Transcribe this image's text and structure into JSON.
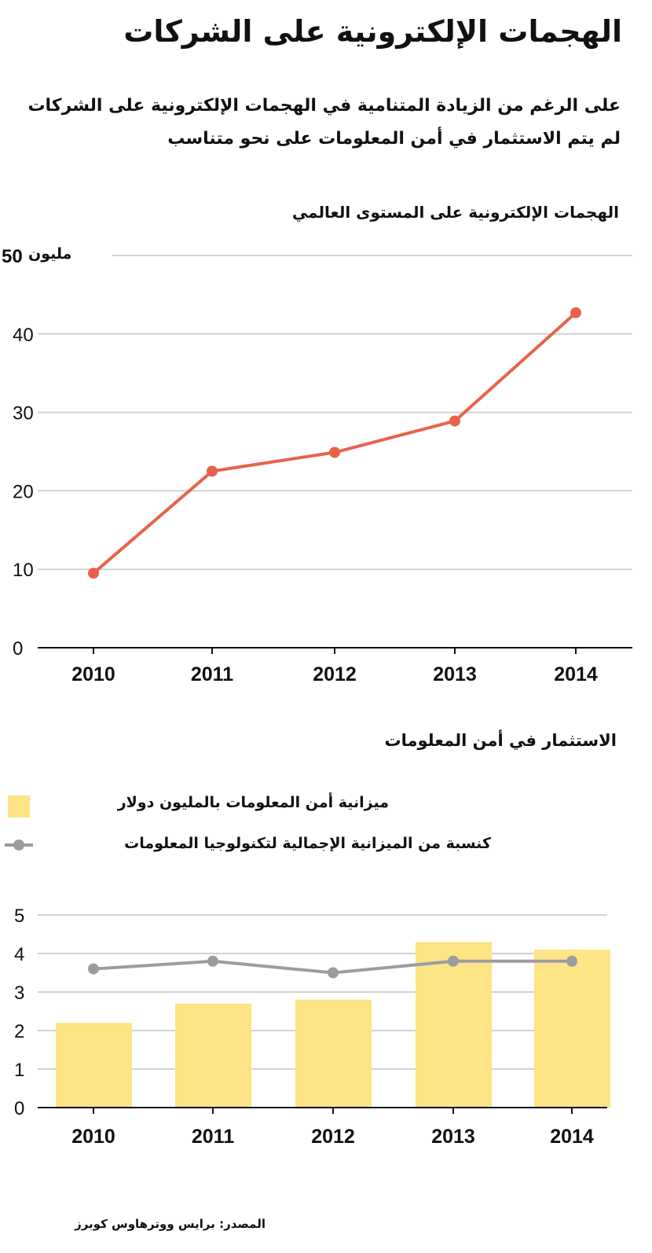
{
  "title": "الهجمات الإلكترونية على الشركات",
  "subtitle": [
    "على الرغم من الزيادة المتنامية في الهجمات الإلكترونية على الشركات",
    "لم يتم الاستثمار في أمن المعلومات على نحو متناسب"
  ],
  "source": "المصدر: برايس ووترهاوس كوبرز",
  "colors": {
    "line": "#e8624a",
    "bar": "#fde484",
    "grey_line": "#9a9da0",
    "grid": "#d0d3d4"
  },
  "chart_data": [
    {
      "type": "line",
      "title": "الهجمات الإلكترونية على المستوى العالمي",
      "unit_label": "مليون",
      "categories": [
        "2010",
        "2011",
        "2012",
        "2013",
        "2014"
      ],
      "values": [
        9.5,
        22.5,
        24.9,
        28.9,
        42.7
      ],
      "yticks": [
        "0",
        "10",
        "20",
        "30",
        "40",
        "50"
      ],
      "ylim": [
        0,
        50
      ],
      "grid": true
    },
    {
      "type": "bar",
      "title": "الاستثمار في أمن المعلومات",
      "categories": [
        "2010",
        "2011",
        "2012",
        "2013",
        "2014"
      ],
      "series": [
        {
          "name": "ميزانية أمن المعلومات بالمليون دولار",
          "type": "bar",
          "values": [
            2.2,
            2.7,
            2.8,
            4.3,
            4.1
          ]
        },
        {
          "name": "كنسبة من الميزانية الإجمالية لتكنولوجيا المعلومات",
          "type": "line",
          "values": [
            3.6,
            3.8,
            3.5,
            3.8,
            3.8
          ]
        }
      ],
      "yticks": [
        "0",
        "1",
        "2",
        "3",
        "4",
        "5"
      ],
      "ylim": [
        0,
        5
      ],
      "legend": "top",
      "grid": true
    }
  ]
}
